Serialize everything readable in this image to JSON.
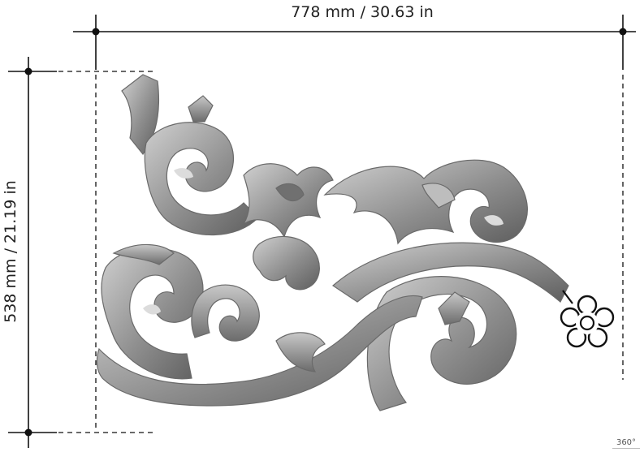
{
  "dimensions": {
    "width_label": "778 mm / 30.63 in",
    "height_label": "538 mm / 21.19 in"
  },
  "viewer": {
    "rotate_badge_label": "360°",
    "rotate_icon": "360-rotate-icon"
  },
  "product": {
    "image": "ornamental-corner-carving",
    "drag_handle_icon": "flower-drag-handle-icon"
  },
  "colors": {
    "carving": "#8e8e8e",
    "carving_highlight": "#c4c4c4",
    "carving_shadow": "#5a5a5a",
    "dimension_line": "#111111"
  }
}
